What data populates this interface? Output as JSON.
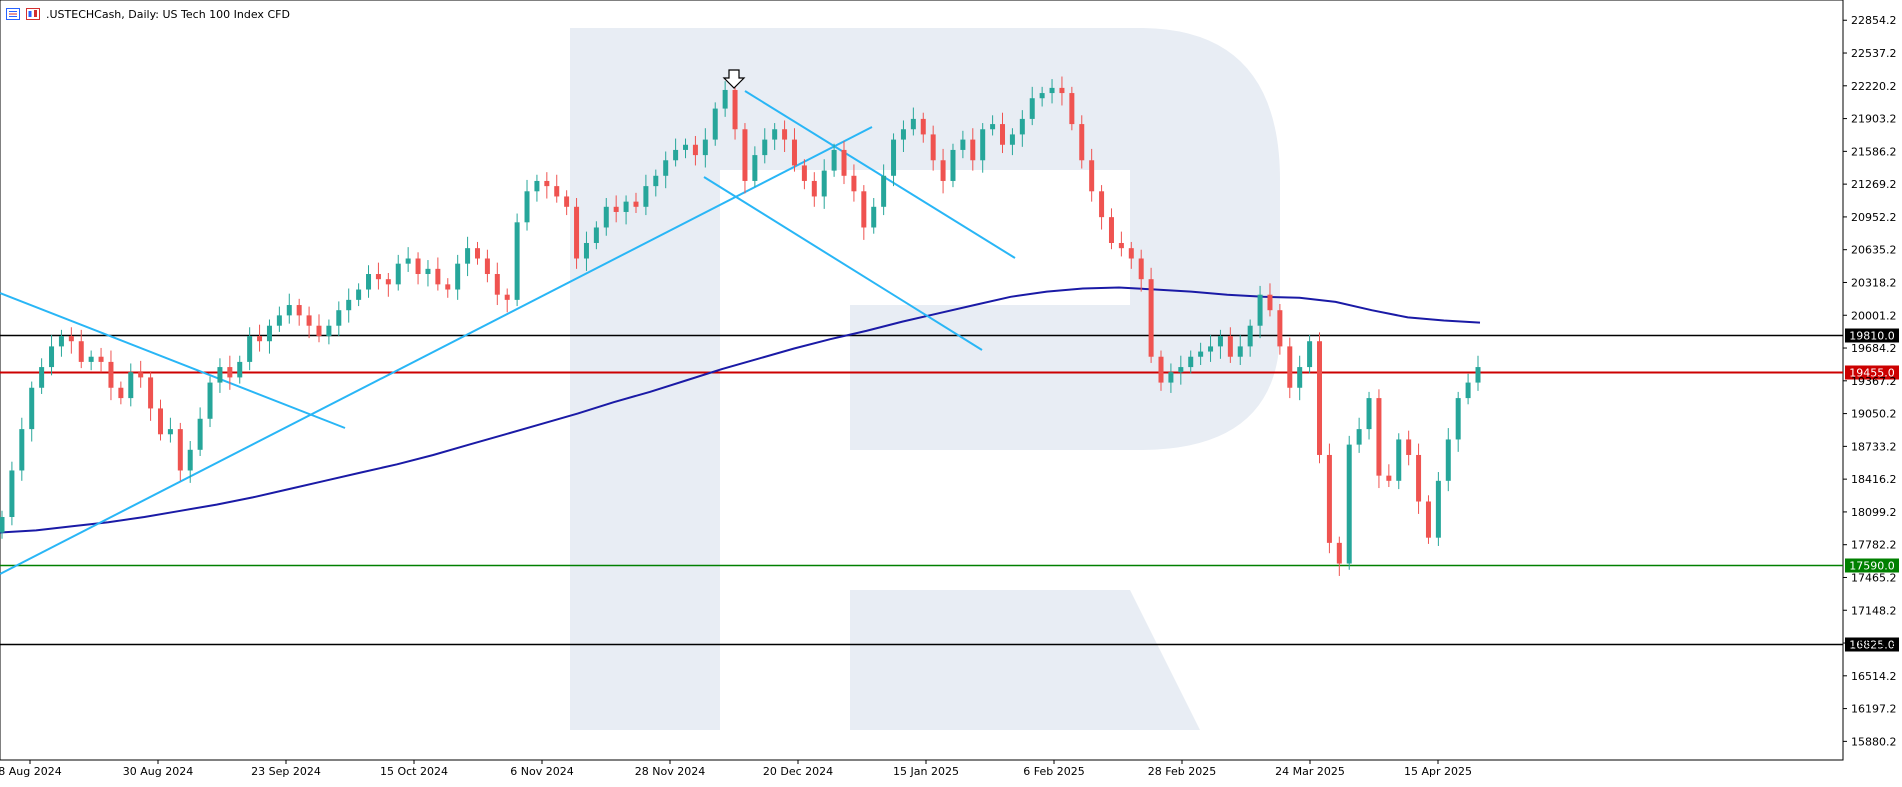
{
  "header": {
    "symbol": ".USTECHCash",
    "timeframe": "Daily",
    "description": "US Tech 100 Index CFD",
    "title_text": ".USTECHCash, Daily:  US Tech 100 Index CFD"
  },
  "colors": {
    "bull": "#26a69a",
    "bear": "#ef5350",
    "ma": "#1a1aa6",
    "trend": "#29b6f6",
    "black_level": "#000000",
    "red_level": "#cc0000",
    "green_level": "#008000",
    "watermark": "#e8edf4"
  },
  "chart_data": {
    "type": "candlestick",
    "y_axis": {
      "ticks": [
        "22854.2",
        "22537.2",
        "22220.2",
        "21903.2",
        "21586.2",
        "21269.2",
        "20952.2",
        "20635.2",
        "20318.2",
        "20001.2",
        "19684.2",
        "19367.2",
        "19050.2",
        "18733.2",
        "18416.2",
        "18099.2",
        "17782.2",
        "17465.2",
        "17148.2",
        "16831.2",
        "16514.2",
        "16197.2",
        "15880.2"
      ],
      "range": [
        15700,
        23050
      ]
    },
    "x_axis": {
      "labels": [
        "8 Aug 2024",
        "30 Aug 2024",
        "23 Sep 2024",
        "15 Oct 2024",
        "6 Nov 2024",
        "28 Nov 2024",
        "20 Dec 2024",
        "15 Jan 2025",
        "6 Feb 2025",
        "28 Feb 2025",
        "24 Mar 2025",
        "15 Apr 2025"
      ]
    },
    "levels": [
      {
        "value": 19810.0,
        "label": "19810.0",
        "color": "black"
      },
      {
        "value": 19455.0,
        "label": "19455.0",
        "color": "red"
      },
      {
        "value": 17590.0,
        "label": "17590.0",
        "color": "green"
      },
      {
        "value": 16825.0,
        "label": "16825.0",
        "color": "black"
      }
    ],
    "closes": [
      18050,
      18500,
      18900,
      19300,
      19500,
      19700,
      19800,
      19750,
      19550,
      19600,
      19550,
      19300,
      19200,
      19450,
      19400,
      19100,
      18850,
      18900,
      18500,
      18700,
      19000,
      19350,
      19500,
      19400,
      19550,
      19800,
      19750,
      19900,
      20000,
      20100,
      20000,
      19900,
      19800,
      19900,
      20050,
      20150,
      20250,
      20400,
      20350,
      20300,
      20500,
      20550,
      20400,
      20450,
      20300,
      20250,
      20500,
      20650,
      20550,
      20400,
      20200,
      20150,
      20900,
      21200,
      21300,
      21250,
      21150,
      21050,
      20550,
      20700,
      20850,
      21050,
      21000,
      21100,
      21050,
      21250,
      21350,
      21500,
      21600,
      21650,
      21550,
      21700,
      22000,
      22180,
      21800,
      21300,
      21550,
      21700,
      21800,
      21700,
      21450,
      21300,
      21150,
      21400,
      21600,
      21350,
      21200,
      20850,
      21050,
      21350,
      21700,
      21800,
      21900,
      21750,
      21500,
      21300,
      21600,
      21700,
      21500,
      21800,
      21850,
      21650,
      21750,
      21900,
      22100,
      22150,
      22200,
      22150,
      21850,
      21500,
      21200,
      20950,
      20700,
      20650,
      20550,
      20350,
      19600,
      19350,
      19450,
      19500,
      19600,
      19650,
      19700,
      19800,
      19600,
      19700,
      19900,
      20200,
      20050,
      19700,
      19300,
      19500,
      19750,
      18650,
      17800,
      17600,
      18750,
      18900,
      19200,
      18450,
      18400,
      18800,
      18650,
      18200,
      17850,
      18400,
      18800,
      19200,
      19350,
      19500
    ],
    "ma_line": [
      17900,
      17920,
      17960,
      18000,
      18050,
      18110,
      18170,
      18240,
      18320,
      18400,
      18480,
      18560,
      18650,
      18750,
      18850,
      18950,
      19050,
      19160,
      19260,
      19370,
      19480,
      19580,
      19680,
      19770,
      19850,
      19940,
      20020,
      20100,
      20180,
      20230,
      20260,
      20270,
      20250,
      20230,
      20200,
      20180,
      20170,
      20130,
      20050,
      19980,
      19950,
      19930
    ],
    "trendlines_text": [],
    "annotations": [
      {
        "type": "arrow-down",
        "near": "28 Nov 2024 peak"
      }
    ]
  }
}
